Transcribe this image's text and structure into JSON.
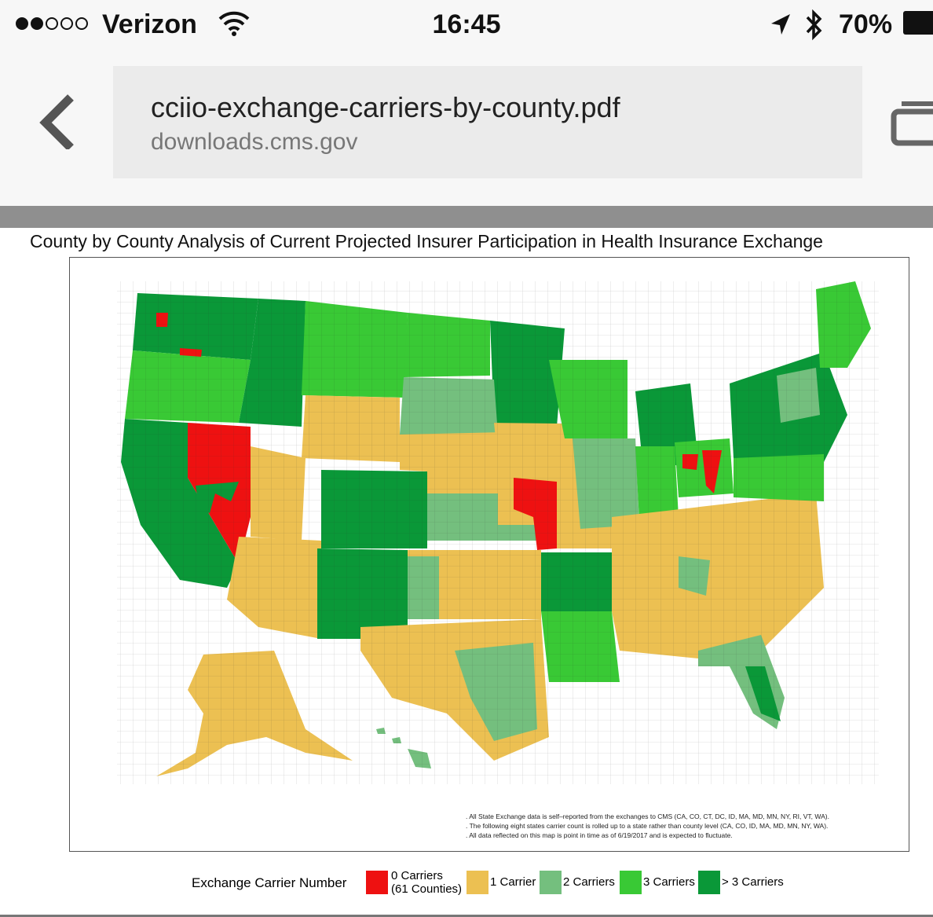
{
  "status_bar": {
    "carrier": "Verizon",
    "time": "16:45",
    "battery": "70%",
    "signal_bars_filled": 2,
    "signal_bars_total": 5
  },
  "browser": {
    "url_title": "cciio-exchange-carriers-by-county.pdf",
    "url_host": "downloads.cms.gov"
  },
  "document": {
    "title": "County by County Analysis of Current Projected Insurer Participation in Health Insurance Exchange",
    "notes": [
      ". All State Exchange data is self–reported from the exchanges to CMS (CA, CO, CT, DC, ID, MA, MD, MN, NY, RI, VT, WA).",
      ". The following eight states carrier count is rolled up to a state rather than county level (CA, CO, ID, MA, MD, MN, NY, WA).",
      ". All data reflected on this map is point in time as of 6/19/2017 and is expected to fluctuate."
    ],
    "legend": {
      "title": "Exchange Carrier Number",
      "items": [
        {
          "label": "0 Carriers",
          "sublabel": "(61 Counties)",
          "color": "#ee1111"
        },
        {
          "label": "1 Carrier",
          "sublabel": "",
          "color": "#ecc052"
        },
        {
          "label": "2 Carriers",
          "sublabel": "",
          "color": "#74bf7e"
        },
        {
          "label": "3 Carriers",
          "sublabel": "",
          "color": "#39c935"
        },
        {
          "label": "> 3 Carriers",
          "sublabel": "",
          "color": "#0a9838"
        }
      ]
    }
  }
}
